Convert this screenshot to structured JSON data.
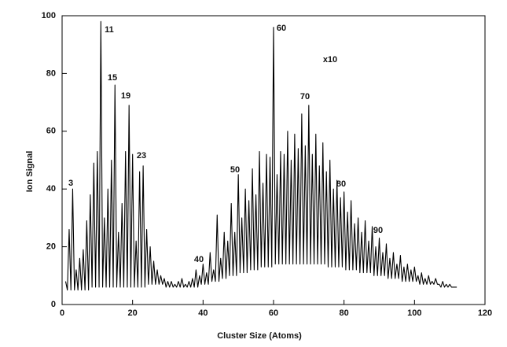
{
  "chart_data": {
    "type": "line",
    "xlabel": "Cluster Size (Atoms)",
    "ylabel": "Ion Signal",
    "annotations": [
      "3",
      "11",
      "15",
      "19",
      "23",
      "40",
      "50",
      "60",
      "70",
      "80",
      "90",
      "x10"
    ],
    "xlim": [
      0,
      120
    ],
    "xticks": [
      0,
      20,
      40,
      60,
      80,
      100,
      120
    ],
    "ylim": [
      0,
      100
    ],
    "yticks": [
      0,
      20,
      40,
      60,
      80,
      100
    ],
    "series": [
      {
        "color": "#000000",
        "x": [
          1,
          1.5,
          2,
          2.5,
          3,
          3.5,
          4,
          4.5,
          5,
          5.5,
          6,
          6.5,
          7,
          7.5,
          8,
          8.5,
          9,
          9.5,
          10,
          10.5,
          11,
          11.5,
          12,
          12.5,
          13,
          13.5,
          14,
          14.5,
          15,
          15.5,
          16,
          16.5,
          17,
          17.5,
          18,
          18.5,
          19,
          19.5,
          20,
          20.5,
          21,
          21.5,
          22,
          22.5,
          23,
          23.5,
          24,
          24.5,
          25,
          25.5,
          26,
          26.5,
          27,
          27.5,
          28,
          28.5,
          29,
          29.5,
          30,
          30.5,
          31,
          31.5,
          32,
          32.5,
          33,
          33.5,
          34,
          34.5,
          35,
          35.5,
          36,
          36.5,
          37,
          37.5,
          38,
          38.5,
          39,
          39.5,
          40,
          40.5,
          41,
          41.5,
          42,
          42.5,
          43,
          43.5,
          44,
          44.5,
          45,
          45.5,
          46,
          46.5,
          47,
          47.5,
          48,
          48.5,
          49,
          49.5,
          50,
          50.5,
          51,
          51.5,
          52,
          52.5,
          53,
          53.5,
          54,
          54.5,
          55,
          55.5,
          56,
          56.5,
          57,
          57.5,
          58,
          58.5,
          59,
          59.5,
          60,
          60.5,
          61,
          61.5,
          62,
          62.5,
          63,
          63.5,
          64,
          64.5,
          65,
          65.5,
          66,
          66.5,
          67,
          67.5,
          68,
          68.5,
          69,
          69.5,
          70,
          70.5,
          71,
          71.5,
          72,
          72.5,
          73,
          73.5,
          74,
          74.5,
          75,
          75.5,
          76,
          76.5,
          77,
          77.5,
          78,
          78.5,
          79,
          79.5,
          80,
          80.5,
          81,
          81.5,
          82,
          82.5,
          83,
          83.5,
          84,
          84.5,
          85,
          85.5,
          86,
          86.5,
          87,
          87.5,
          88,
          88.5,
          89,
          89.5,
          90,
          90.5,
          91,
          91.5,
          92,
          92.5,
          93,
          93.5,
          94,
          94.5,
          95,
          95.5,
          96,
          96.5,
          97,
          97.5,
          98,
          98.5,
          99,
          99.5,
          100,
          100.5,
          101,
          101.5,
          102,
          102.5,
          103,
          103.5,
          104,
          104.5,
          105,
          105.5,
          106,
          106.5,
          107,
          107.5,
          108,
          108.5,
          109,
          109.5,
          110,
          110.5,
          111,
          111.5,
          112
        ],
        "values": [
          8,
          5,
          26,
          5,
          40,
          5,
          12,
          5,
          16,
          5,
          19,
          5,
          29,
          5,
          38,
          6,
          49,
          6,
          53,
          6,
          98,
          6,
          30,
          6,
          40,
          6,
          50,
          6,
          76,
          6,
          25,
          6,
          35,
          6,
          53,
          6,
          69,
          6,
          52,
          6,
          22,
          6,
          46,
          6,
          48,
          6,
          26,
          7,
          20,
          7,
          15,
          7,
          12,
          7,
          10,
          7,
          9,
          6,
          8,
          6,
          8,
          6,
          7,
          6,
          8,
          6,
          9,
          6,
          7,
          6,
          8,
          6,
          9,
          6,
          12,
          6,
          10,
          7,
          14,
          7,
          11,
          7,
          18,
          8,
          12,
          8,
          31,
          8,
          16,
          9,
          25,
          9,
          22,
          10,
          35,
          10,
          25,
          10,
          45,
          11,
          30,
          11,
          40,
          11,
          36,
          12,
          47,
          12,
          38,
          12,
          53,
          13,
          42,
          13,
          52,
          13,
          51,
          13,
          96,
          14,
          45,
          14,
          53,
          14,
          52,
          14,
          60,
          14,
          50,
          14,
          59,
          14,
          54,
          14,
          66,
          14,
          55,
          14,
          69,
          14,
          52,
          14,
          59,
          14,
          48,
          14,
          56,
          14,
          46,
          13,
          50,
          13,
          40,
          13,
          43,
          13,
          37,
          13,
          39,
          12,
          32,
          12,
          36,
          12,
          28,
          12,
          30,
          11,
          25,
          11,
          29,
          11,
          22,
          11,
          27,
          10,
          20,
          10,
          23,
          10,
          18,
          10,
          21,
          9,
          16,
          9,
          18,
          9,
          14,
          9,
          17,
          8,
          13,
          8,
          14,
          8,
          12,
          8,
          13,
          8,
          10,
          7,
          11,
          7,
          9,
          7,
          10,
          7,
          8,
          7,
          9,
          7,
          7,
          6,
          8,
          6,
          7,
          6,
          7,
          6,
          6,
          6,
          6
        ]
      }
    ]
  }
}
